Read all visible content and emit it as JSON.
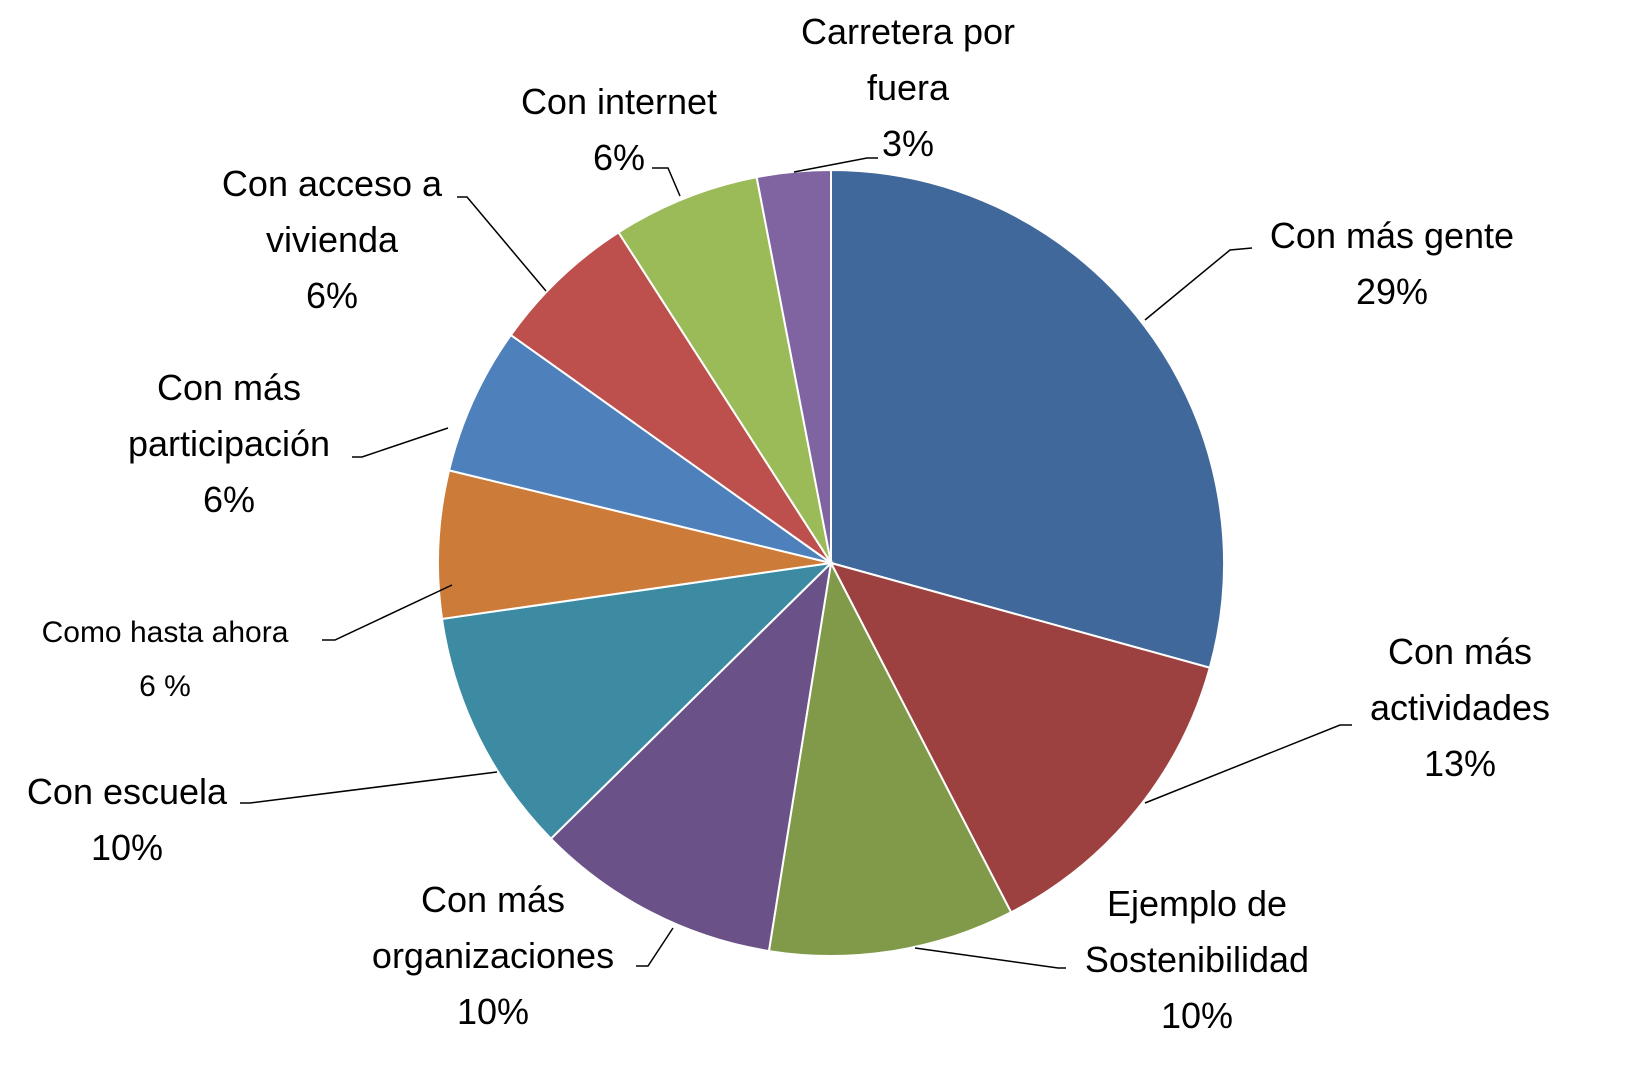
{
  "chart_data": {
    "type": "pie",
    "categories": [
      "Con más gente",
      "Con más actividades",
      "Ejemplo de Sostenibilidad",
      "Con más organizaciones",
      "Con escuela",
      "Como hasta ahora",
      "Con más participación",
      "Con acceso a vivienda",
      "Con internet",
      "Carretera por fuera"
    ],
    "values": [
      29,
      13,
      10,
      10,
      10,
      6,
      6,
      6,
      6,
      3
    ],
    "value_labels": [
      "29%",
      "13%",
      "10%",
      "10%",
      "10%",
      "6 %",
      "6%",
      "6%",
      "6%",
      "3%"
    ],
    "colors": [
      "#41689a",
      "#9c4140",
      "#809a4a",
      "#6a5288",
      "#3d8ba3",
      "#cd7b39",
      "#4e80bb",
      "#bd4f4c",
      "#9bbb59",
      "#8064a2"
    ]
  }
}
